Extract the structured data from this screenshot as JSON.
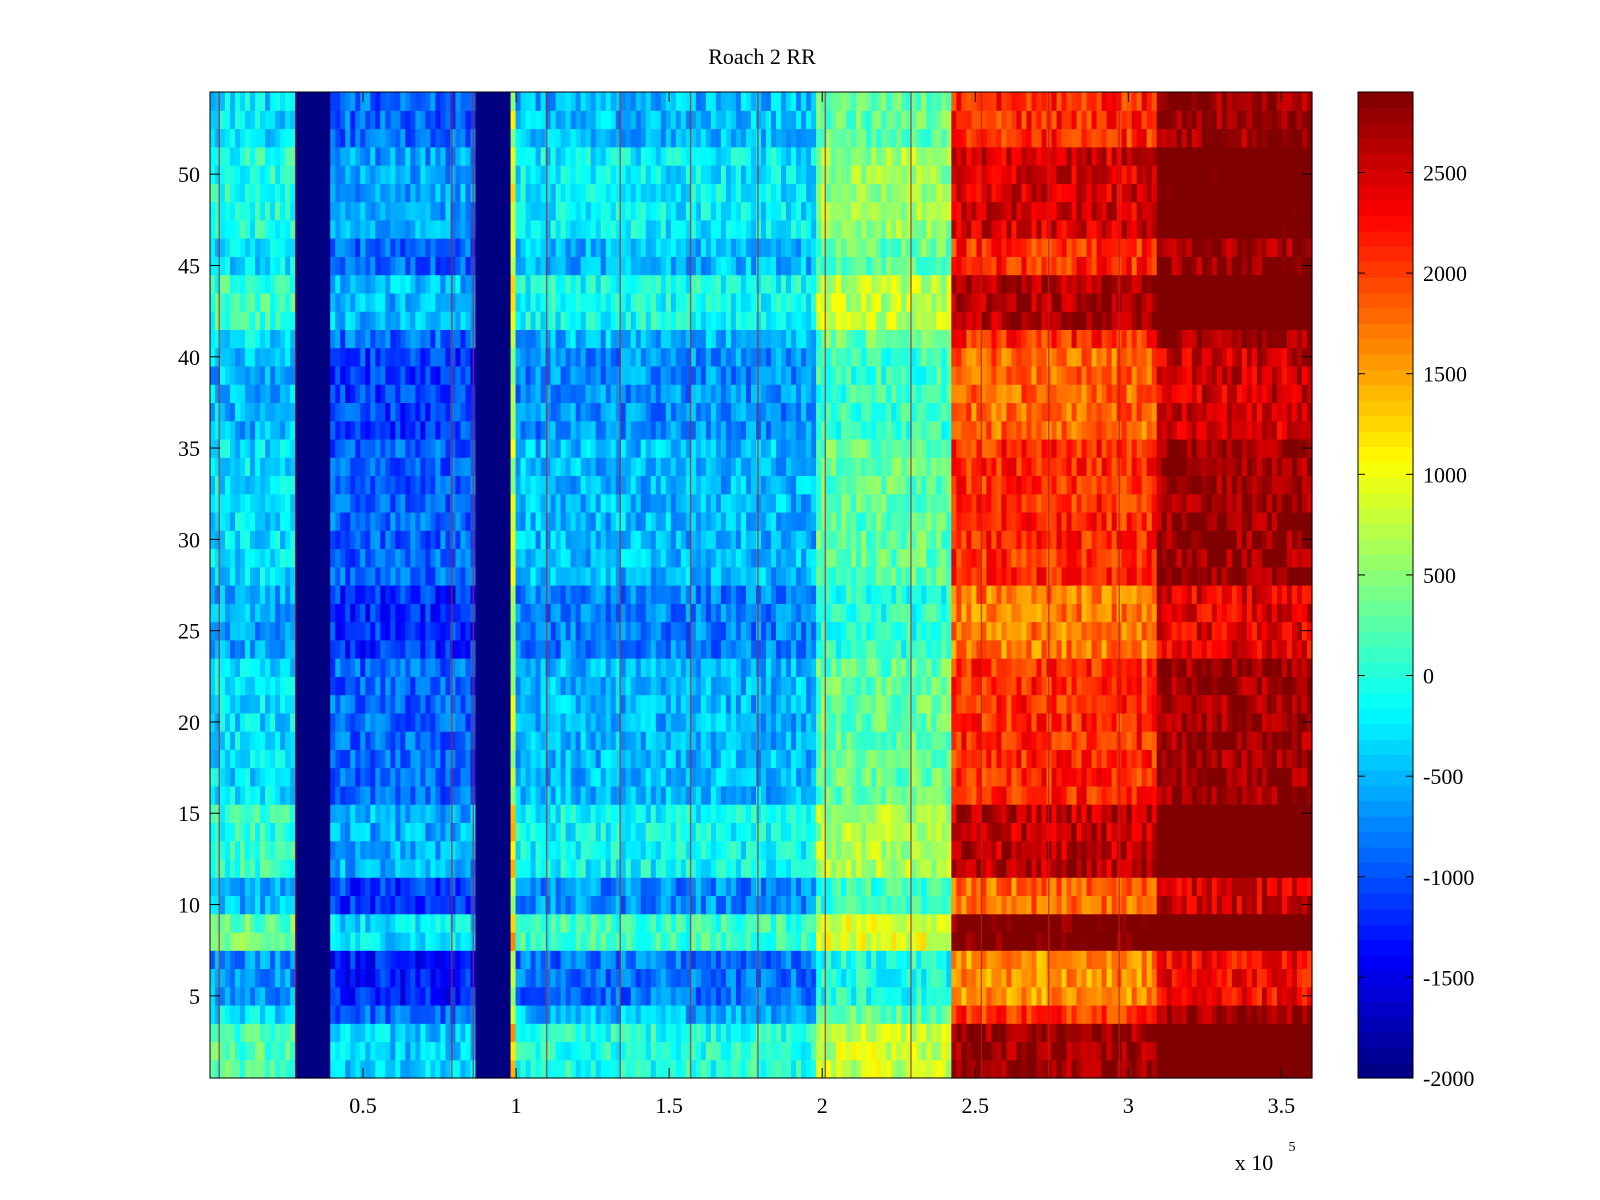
{
  "chart_data": {
    "type": "heatmap",
    "title": "Roach 2 RR",
    "xlabel": "",
    "ylabel": "",
    "x_exponent_label": "x 10",
    "x_exponent_power": "5",
    "xlim": [
      0,
      360000
    ],
    "ylim": [
      0.5,
      54.5
    ],
    "x_ticks": [
      50000,
      100000,
      150000,
      200000,
      250000,
      300000,
      350000
    ],
    "x_tick_labels": [
      "0.5",
      "1",
      "1.5",
      "2",
      "2.5",
      "3",
      "3.5"
    ],
    "y_ticks": [
      5,
      10,
      15,
      20,
      25,
      30,
      35,
      40,
      45,
      50
    ],
    "y_tick_labels": [
      "5",
      "10",
      "15",
      "20",
      "25",
      "30",
      "35",
      "40",
      "45",
      "50"
    ],
    "rows": 54,
    "colorbar": {
      "colormap": "jet",
      "clim": [
        -2000,
        2900
      ],
      "ticks": [
        2500,
        2000,
        1500,
        1000,
        500,
        0,
        -500,
        -1000,
        -1500,
        -2000
      ],
      "tick_labels": [
        "2500",
        "2000",
        "1500",
        "1000",
        "500",
        "0",
        "-500",
        "-1000",
        "-1500",
        "-2000"
      ]
    },
    "column_bands": [
      {
        "x_start": 0,
        "x_end": 28000,
        "value": -300
      },
      {
        "x_start": 28000,
        "x_end": 40000,
        "value": -2000
      },
      {
        "x_start": 40000,
        "x_end": 87000,
        "value": -900
      },
      {
        "x_start": 87000,
        "x_end": 98000,
        "value": -2000
      },
      {
        "x_start": 98000,
        "x_end": 100000,
        "value": 800
      },
      {
        "x_start": 100000,
        "x_end": 198000,
        "value": -500
      },
      {
        "x_start": 198000,
        "x_end": 243000,
        "value": 300
      },
      {
        "x_start": 243000,
        "x_end": 310000,
        "value": 2100
      },
      {
        "x_start": 310000,
        "x_end": 360000,
        "value": 2800
      }
    ],
    "row_offsets": [
      {
        "rows": [
          1,
          2,
          3
        ],
        "offset": 700
      },
      {
        "rows": [
          5,
          6,
          7
        ],
        "offset": -500
      },
      {
        "rows": [
          8,
          9
        ],
        "offset": 900
      },
      {
        "rows": [
          10,
          11
        ],
        "offset": -300
      },
      {
        "rows": [
          12,
          13,
          14,
          15
        ],
        "offset": 500
      },
      {
        "rows": [
          24,
          25,
          26,
          27
        ],
        "offset": -400
      },
      {
        "rows": [
          36,
          37
        ],
        "offset": -300
      },
      {
        "rows": [
          38,
          39,
          40
        ],
        "offset": -300
      },
      {
        "rows": [
          42,
          43,
          44
        ],
        "offset": 600
      },
      {
        "rows": [
          47,
          48,
          49,
          50,
          51
        ],
        "offset": 400
      }
    ],
    "vertical_lines_x": [
      3000,
      28000,
      79000,
      86000,
      110000,
      134000,
      157000,
      179000,
      201000,
      229000,
      252000,
      274000,
      297000
    ]
  }
}
